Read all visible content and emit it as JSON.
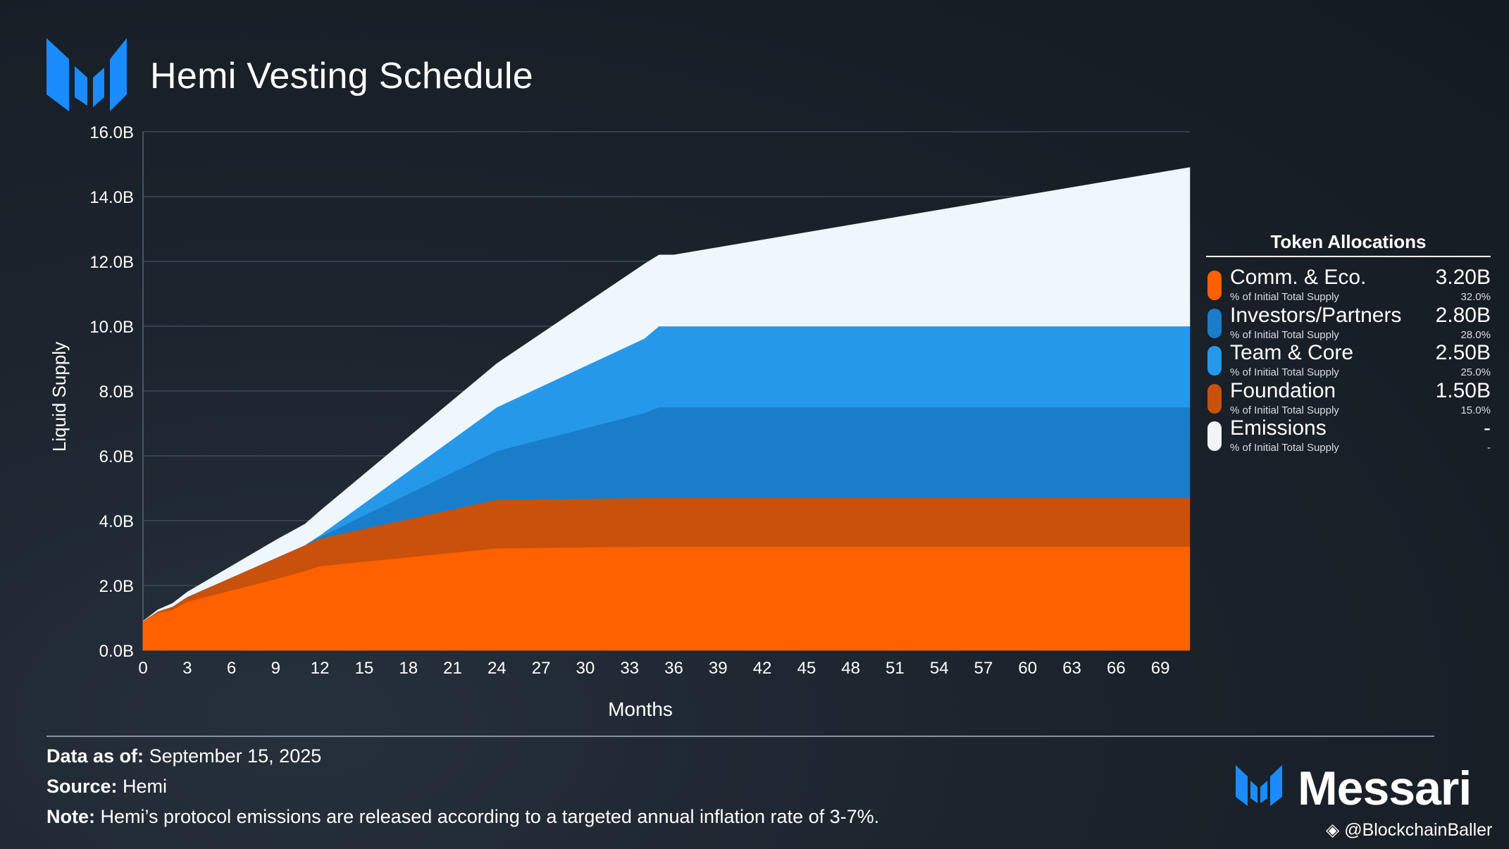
{
  "title": "Hemi Vesting Schedule",
  "chart_data": {
    "type": "area",
    "stacked": true,
    "title": "Hemi Vesting Schedule",
    "xlabel": "Months",
    "ylabel": "Liquid Supply",
    "xlim": [
      0,
      71
    ],
    "ylim": [
      0,
      16
    ],
    "grid": true,
    "x_ticks": [
      "0",
      "3",
      "6",
      "9",
      "12",
      "15",
      "18",
      "21",
      "24",
      "27",
      "30",
      "33",
      "36",
      "39",
      "42",
      "45",
      "48",
      "51",
      "54",
      "57",
      "60",
      "63",
      "66",
      "69"
    ],
    "y_ticks": [
      "0.0B",
      "2.0B",
      "4.0B",
      "6.0B",
      "8.0B",
      "10.0B",
      "12.0B",
      "14.0B",
      "16.0B"
    ],
    "x": [
      0,
      1,
      2,
      3,
      6,
      9,
      11,
      12,
      24,
      34,
      35,
      36,
      71
    ],
    "series": [
      {
        "name": "Comm. & Eco.",
        "color": "#ff6000",
        "values": [
          0.9,
          1.15,
          1.25,
          1.5,
          1.85,
          2.2,
          2.45,
          2.6,
          3.15,
          3.2,
          3.2,
          3.2,
          3.2
        ]
      },
      {
        "name": "Foundation",
        "color": "#c9510c",
        "values": [
          0.0,
          0.05,
          0.1,
          0.15,
          0.4,
          0.65,
          0.8,
          0.85,
          1.5,
          1.5,
          1.5,
          1.5,
          1.5
        ]
      },
      {
        "name": "Investors/Partners",
        "color": "#1a7dc9",
        "values": [
          0.0,
          0.0,
          0.0,
          0.0,
          0.0,
          0.0,
          0.0,
          0.05,
          1.5,
          2.62,
          2.8,
          2.8,
          2.8
        ]
      },
      {
        "name": "Team & Core",
        "color": "#2698ea",
        "values": [
          0.0,
          0.0,
          0.0,
          0.0,
          0.0,
          0.0,
          0.0,
          0.05,
          1.35,
          2.3,
          2.5,
          2.5,
          2.5
        ]
      },
      {
        "name": "Emissions",
        "color": "#eef7fb",
        "values": [
          0.0,
          0.05,
          0.1,
          0.15,
          0.35,
          0.55,
          0.65,
          0.75,
          1.35,
          2.3,
          2.2,
          2.2,
          4.9
        ]
      }
    ]
  },
  "legend": {
    "title": "Token Allocations",
    "items": [
      {
        "name": "Comm. & Eco.",
        "value": "3.20B",
        "sub": "% of Initial Total Supply",
        "pct": "32.0%",
        "color": "#ff6000"
      },
      {
        "name": "Investors/Partners",
        "value": "2.80B",
        "sub": "% of Initial Total Supply",
        "pct": "28.0%",
        "color": "#1a7dc9"
      },
      {
        "name": "Team & Core",
        "value": "2.50B",
        "sub": "% of Initial Total Supply",
        "pct": "25.0%",
        "color": "#2698ea"
      },
      {
        "name": "Foundation",
        "value": "1.50B",
        "sub": "% of Initial Total Supply",
        "pct": "15.0%",
        "color": "#c9510c"
      },
      {
        "name": "Emissions",
        "value": "-",
        "sub": "% of Initial Total Supply",
        "pct": "-",
        "color": "#f2f5f7"
      }
    ]
  },
  "footer": {
    "date_label": "Data as of:",
    "date_value": "September 15, 2025",
    "source_label": "Source:",
    "source_value": "Hemi",
    "note_label": "Note:",
    "note_value": "Hemi’s protocol emissions are released according to a targeted annual inflation rate of 3-7%."
  },
  "brand": {
    "name": "Messari",
    "color": "#1a8cff"
  },
  "watermark": "@BlockchainBaller"
}
